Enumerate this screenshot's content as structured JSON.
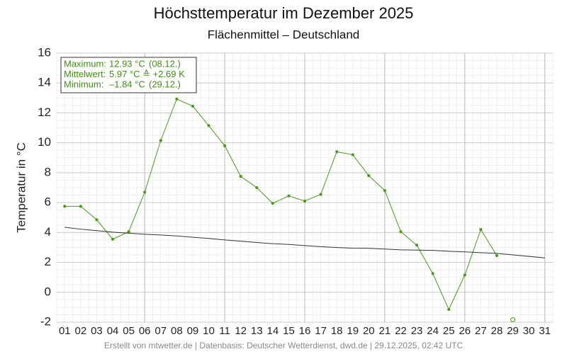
{
  "chart_data": {
    "type": "line",
    "title": "Höchsttemperatur im Dezember 2025",
    "subtitle": "Flächenmittel – Deutschland",
    "y_label": "Temperatur in °C",
    "footer": "Erstellt von mtwetter.de | Datenbasis: Deutscher Wetterdienst, dwd.de | 29.12.2025, 02:42 UTC",
    "info_box": [
      [
        "Maximum:",
        "12.93 °C",
        "(08.12.)"
      ],
      [
        "Mittelwert:",
        "5.97 °C ≙ +2.69 K"
      ],
      [
        "Minimum:",
        "–1.84 °C",
        "(29.12.)"
      ]
    ],
    "info_color": "#3f8f0f",
    "categories": [
      "01",
      "02",
      "03",
      "04",
      "05",
      "06",
      "07",
      "08",
      "09",
      "10",
      "11",
      "12",
      "13",
      "14",
      "15",
      "16",
      "17",
      "18",
      "19",
      "20",
      "21",
      "22",
      "23",
      "24",
      "25",
      "26",
      "27",
      "28",
      "29",
      "30",
      "31"
    ],
    "series": [
      {
        "color": "#4a9a1a",
        "marker": "dot",
        "values": [
          5.75,
          5.75,
          4.85,
          3.55,
          4.05,
          6.7,
          10.15,
          12.93,
          12.45,
          11.15,
          9.8,
          7.75,
          7.0,
          5.95,
          6.45,
          6.1,
          6.55,
          9.4,
          9.2,
          7.8,
          6.8,
          4.05,
          3.15,
          1.25,
          -1.15,
          1.15,
          4.2,
          2.45,
          null,
          null,
          null
        ]
      },
      {
        "color": "#4a9a1a",
        "marker": "open",
        "values": [
          null,
          null,
          null,
          null,
          null,
          null,
          null,
          null,
          null,
          null,
          null,
          null,
          null,
          null,
          null,
          null,
          null,
          null,
          null,
          null,
          null,
          null,
          null,
          null,
          null,
          null,
          null,
          null,
          -1.84,
          null,
          null
        ]
      },
      {
        "color": "#333333",
        "marker": "none",
        "values": [
          4.35,
          4.22,
          4.12,
          4.02,
          3.95,
          3.88,
          3.83,
          3.77,
          3.68,
          3.6,
          3.5,
          3.42,
          3.33,
          3.25,
          3.2,
          3.12,
          3.05,
          2.99,
          2.95,
          2.94,
          2.89,
          2.84,
          2.82,
          2.8,
          2.74,
          2.7,
          2.65,
          2.6,
          2.5,
          2.4,
          2.3
        ]
      }
    ],
    "ylim": [
      -2,
      16
    ],
    "yticks": [
      -2,
      0,
      2,
      4,
      6,
      8,
      10,
      12,
      14,
      16
    ],
    "major_x_every": 5,
    "grid": true
  }
}
